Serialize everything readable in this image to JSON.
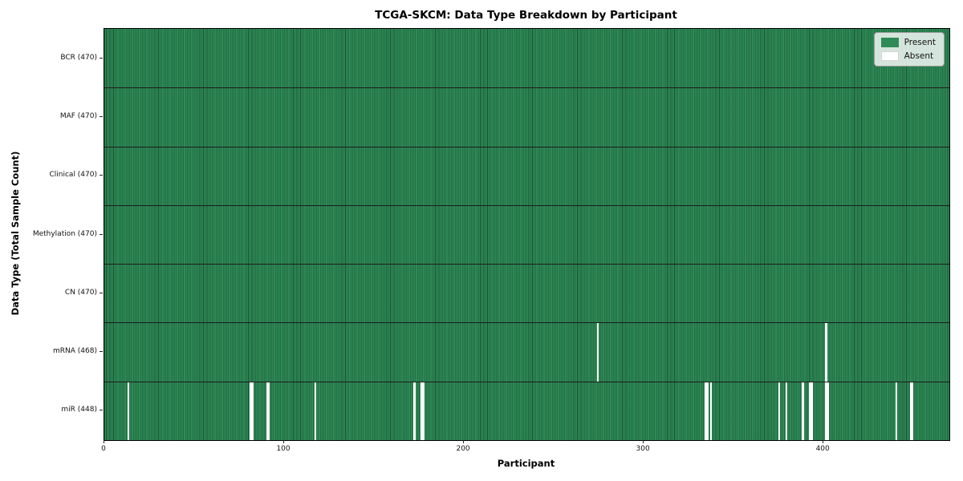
{
  "title": "TCGA-SKCM: Data Type Breakdown by Participant",
  "axes": {
    "x_label": "Participant",
    "y_label": "Data Type (Total Sample Count)"
  },
  "legend": {
    "items": [
      {
        "label": "Present",
        "color": "#2e8b57"
      },
      {
        "label": "Absent",
        "color": "#ffffff"
      }
    ]
  },
  "colors": {
    "present": "#2e8b57",
    "absent": "#ffffff",
    "cell_edge": "rgba(8,34,20,0.55)",
    "row_divider": "#1c1c1c",
    "tick": "#222222"
  },
  "chart_data": {
    "type": "heatmap",
    "title": "TCGA-SKCM: Data Type Breakdown by Participant",
    "xlabel": "Participant",
    "ylabel": "Data Type (Total Sample Count)",
    "legend": [
      "Present",
      "Absent"
    ],
    "legend_position": "upper right",
    "grid": false,
    "n_participants": 470,
    "x_ticks": [
      0,
      100,
      200,
      300,
      400
    ],
    "x_range": [
      0,
      470
    ],
    "rows": [
      {
        "data_type": "BCR",
        "label": "BCR (470)",
        "present_count": 470,
        "absent_participants": []
      },
      {
        "data_type": "MAF",
        "label": "MAF (470)",
        "present_count": 470,
        "absent_participants": []
      },
      {
        "data_type": "Clinical",
        "label": "Clinical (470)",
        "present_count": 470,
        "absent_participants": []
      },
      {
        "data_type": "Methylation",
        "label": "Methylation (470)",
        "present_count": 470,
        "absent_participants": []
      },
      {
        "data_type": "CN",
        "label": "CN (470)",
        "present_count": 470,
        "absent_participants": []
      },
      {
        "data_type": "mRNA",
        "label": "mRNA (468)",
        "present_count": 468,
        "absent_participants": [
          274,
          401
        ]
      },
      {
        "data_type": "miR",
        "label": "miR (448)",
        "present_count": 448,
        "absent_participants": [
          13,
          81,
          82,
          90,
          91,
          117,
          172,
          176,
          177,
          334,
          335,
          337,
          375,
          379,
          388,
          392,
          393,
          401,
          402,
          440,
          448,
          449
        ]
      }
    ]
  }
}
